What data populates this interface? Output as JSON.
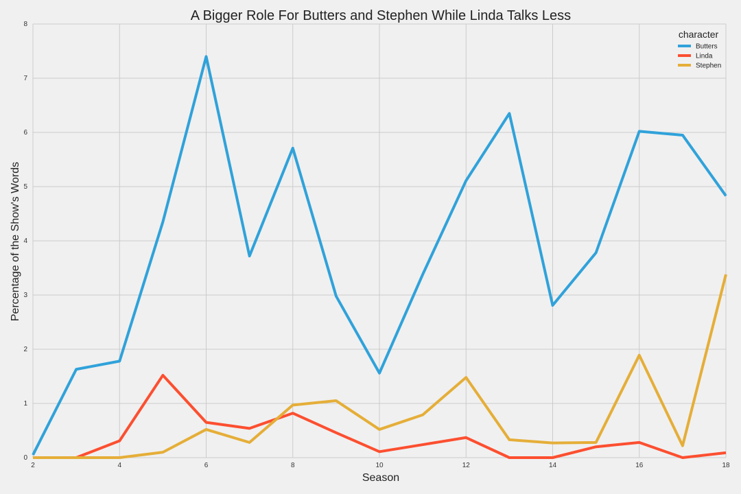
{
  "chart_data": {
    "type": "line",
    "title": "A Bigger Role For Butters and Stephen While Linda Talks Less",
    "xlabel": "Season",
    "ylabel": "Percentage of the Show's Words",
    "xlim": [
      2,
      18
    ],
    "ylim": [
      0,
      8
    ],
    "xticks": [
      2,
      4,
      6,
      8,
      10,
      12,
      14,
      16,
      18
    ],
    "yticks": [
      0,
      1,
      2,
      3,
      4,
      5,
      6,
      7,
      8
    ],
    "grid": true,
    "legend": {
      "title": "character",
      "placement": "top-right"
    },
    "x": [
      2,
      3,
      4,
      5,
      6,
      7,
      8,
      9,
      10,
      11,
      12,
      13,
      14,
      15,
      16,
      17,
      18
    ],
    "series": [
      {
        "name": "Butters",
        "color": "#30a2da",
        "values": [
          0.05,
          1.63,
          1.78,
          4.35,
          7.4,
          3.72,
          5.71,
          2.98,
          1.56,
          3.38,
          5.11,
          6.35,
          2.81,
          3.78,
          6.02,
          5.95,
          4.83
        ]
      },
      {
        "name": "Linda",
        "color": "#fc4f30",
        "values": [
          0.0,
          0.0,
          0.31,
          1.52,
          0.65,
          0.54,
          0.82,
          0.46,
          0.11,
          0.24,
          0.37,
          0.0,
          0.0,
          0.2,
          0.28,
          0.0,
          0.09
        ]
      },
      {
        "name": "Stephen",
        "color": "#e5ae38",
        "values": [
          0.0,
          0.0,
          0.0,
          0.1,
          0.52,
          0.28,
          0.97,
          1.05,
          0.52,
          0.79,
          1.48,
          0.33,
          0.27,
          0.28,
          1.89,
          0.22,
          3.38
        ]
      }
    ]
  }
}
